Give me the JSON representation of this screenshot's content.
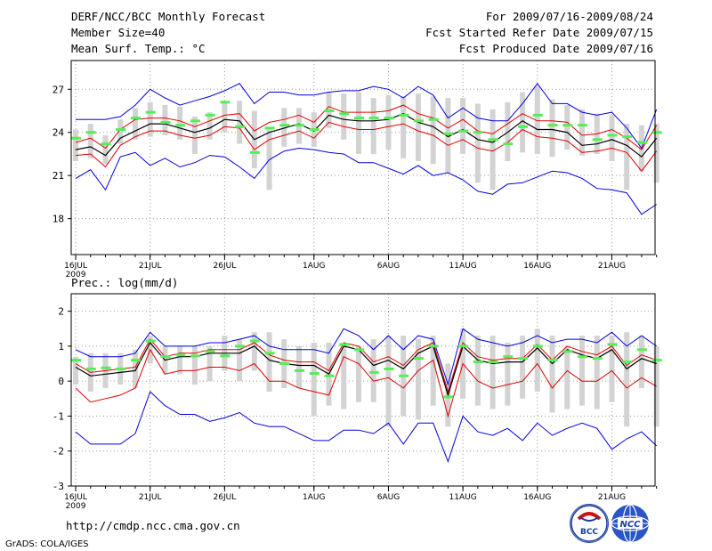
{
  "header": {
    "title": "DERF/NCC/BCC Monthly Forecast",
    "member_size": "Member Size=40",
    "variable": "Mean Surf. Temp.: °C",
    "period": "For 2009/07/16-2009/08/24",
    "refer_date": "Fcst Started Refer Date 2009/07/15",
    "produced_date": "Fcst Produced Date 2009/07/16"
  },
  "footer": {
    "url": "http://cmdp.ncc.cma.gov.cn",
    "grads": "GrADS: COLA/IGES",
    "logo_bcc": "BCC",
    "logo_ncc": "NCC"
  },
  "colors": {
    "box": "#d3d3d3",
    "median": "#55ee55",
    "mean": "#000000",
    "band_inner": "#e00000",
    "band_outer": "#0000dd",
    "grid": "#999999"
  },
  "chart_data": [
    {
      "type": "box-plume",
      "title": "Mean Surf. Temp.: °C",
      "xlabel": "",
      "ylabel": "°C",
      "x_start": "2009-07-16",
      "n_days": 40,
      "xlim": [
        -0.3,
        38.9
      ],
      "ylim": [
        15.5,
        29
      ],
      "yticks": [
        18,
        21,
        24,
        27
      ],
      "ytick_labels": [
        "18",
        "21",
        "24",
        "27"
      ],
      "xticks": [
        0,
        5,
        10,
        16,
        21,
        26,
        31,
        36
      ],
      "xtick_labels": [
        "16JUL",
        "21JUL",
        "26JUL",
        "1AUG",
        "6AUG",
        "11AUG",
        "16AUG",
        "21AUG"
      ],
      "year_label": "2009",
      "grid": true,
      "series": [
        {
          "name": "box_low",
          "values": [
            22.0,
            22.2,
            21.8,
            23.2,
            23.5,
            23.7,
            23.8,
            23.5,
            22.5,
            23.5,
            24.0,
            23.2,
            21.5,
            20.0,
            23.0,
            23.2,
            23.0,
            24.3,
            23.5,
            22.5,
            22.5,
            22.8,
            22.2,
            22.0,
            21.8,
            21.2,
            22.5,
            20.5,
            20.0,
            22.0,
            22.6,
            22.5,
            22.3,
            22.8,
            22.4,
            22.5,
            22.0,
            20.0,
            21.3,
            20.5
          ]
        },
        {
          "name": "box_high",
          "values": [
            24.2,
            24.6,
            23.8,
            24.9,
            25.7,
            26.1,
            25.9,
            25.8,
            25.1,
            25.4,
            26.2,
            26.2,
            25.5,
            24.2,
            25.7,
            25.7,
            25.4,
            26.8,
            26.7,
            26.8,
            26.4,
            26.6,
            26.5,
            26.7,
            26.5,
            26.4,
            26.4,
            26.0,
            25.6,
            26.1,
            26.8,
            27.2,
            26.3,
            25.9,
            25.6,
            25.3,
            25.2,
            24.6,
            24.5,
            24.6
          ]
        },
        {
          "name": "median",
          "values": [
            23.6,
            24.0,
            23.2,
            24.2,
            25.0,
            25.4,
            24.7,
            24.5,
            24.8,
            25.2,
            26.1,
            24.4,
            22.6,
            24.3,
            24.5,
            24.5,
            24.2,
            25.5,
            25.3,
            25.0,
            25.0,
            25.0,
            25.2,
            24.8,
            24.9,
            23.9,
            24.1,
            24.0,
            23.5,
            23.2,
            24.4,
            25.2,
            24.5,
            24.5,
            24.5,
            23.5,
            23.8,
            23.7,
            23.3,
            24.0
          ]
        },
        {
          "name": "mean",
          "values": [
            22.8,
            23.0,
            22.4,
            23.6,
            24.1,
            24.6,
            24.6,
            24.3,
            24.0,
            24.3,
            24.9,
            24.8,
            23.5,
            24.0,
            24.3,
            24.6,
            24.1,
            25.2,
            24.9,
            24.8,
            24.8,
            24.9,
            25.3,
            24.7,
            24.4,
            23.7,
            24.2,
            23.5,
            23.3,
            24.0,
            24.8,
            24.2,
            24.2,
            24.0,
            23.1,
            23.2,
            23.5,
            23.1,
            22.3,
            23.6
          ]
        },
        {
          "name": "inner_high",
          "values": [
            23.3,
            23.6,
            22.9,
            24.2,
            24.9,
            25.0,
            25.0,
            24.8,
            24.4,
            24.8,
            25.2,
            25.3,
            24.1,
            24.7,
            24.9,
            25.2,
            24.7,
            25.8,
            25.4,
            25.4,
            25.4,
            25.5,
            25.9,
            25.3,
            25.0,
            24.3,
            24.9,
            24.1,
            23.9,
            24.6,
            25.3,
            24.8,
            24.8,
            24.7,
            23.8,
            23.9,
            24.2,
            23.6,
            22.8,
            24.5
          ]
        },
        {
          "name": "inner_low",
          "values": [
            22.4,
            22.5,
            21.6,
            23.1,
            23.7,
            24.1,
            24.1,
            23.8,
            23.6,
            23.8,
            24.4,
            24.3,
            22.8,
            23.5,
            23.8,
            24.1,
            23.6,
            24.7,
            24.4,
            24.2,
            24.2,
            24.4,
            24.6,
            24.1,
            23.8,
            23.1,
            23.5,
            22.9,
            22.7,
            23.3,
            24.2,
            23.7,
            23.6,
            23.4,
            22.6,
            22.7,
            22.9,
            22.6,
            21.3,
            22.7
          ]
        },
        {
          "name": "outer_high",
          "values": [
            24.9,
            24.9,
            24.9,
            25.1,
            25.9,
            27.0,
            26.4,
            25.9,
            26.2,
            26.5,
            26.9,
            27.4,
            26.0,
            26.8,
            26.8,
            26.6,
            26.6,
            26.8,
            26.9,
            26.9,
            27.2,
            27.0,
            26.4,
            27.2,
            26.6,
            25.0,
            25.7,
            25.0,
            24.8,
            24.8,
            26.0,
            27.4,
            26.0,
            26.0,
            25.4,
            25.2,
            25.4,
            24.3,
            22.9,
            25.6
          ]
        },
        {
          "name": "outer_low",
          "values": [
            20.8,
            21.4,
            20.0,
            22.3,
            22.6,
            21.7,
            22.2,
            21.6,
            21.9,
            22.4,
            22.3,
            21.6,
            20.8,
            22.1,
            22.7,
            22.9,
            22.8,
            22.6,
            22.5,
            21.9,
            21.9,
            21.5,
            21.1,
            21.7,
            21.0,
            21.2,
            20.7,
            19.9,
            19.7,
            20.4,
            20.5,
            20.9,
            21.3,
            21.2,
            20.8,
            20.1,
            20.0,
            19.8,
            18.3,
            19.0
          ]
        }
      ]
    },
    {
      "type": "box-plume",
      "title": "Prec.: log(mm/d)",
      "xlabel": "",
      "ylabel": "log(mm/d)",
      "x_start": "2009-07-16",
      "n_days": 40,
      "xlim": [
        -0.3,
        38.9
      ],
      "ylim": [
        -3,
        2.5
      ],
      "yticks": [
        -3,
        -2,
        -1,
        0,
        1,
        2
      ],
      "ytick_labels": [
        "-3",
        "-2",
        "-1",
        "0",
        "1",
        "2"
      ],
      "xticks": [
        0,
        5,
        10,
        16,
        21,
        26,
        31,
        36
      ],
      "xtick_labels": [
        "16JUL",
        "21JUL",
        "26JUL",
        "1AUG",
        "6AUG",
        "11AUG",
        "16AUG",
        "21AUG"
      ],
      "year_label": "2009",
      "grid": true,
      "series": [
        {
          "name": "box_low",
          "values": [
            -0.1,
            -0.3,
            -0.2,
            -0.1,
            -0.2,
            0.5,
            0.2,
            0.2,
            -0.1,
            0.0,
            0.3,
            0.0,
            0.3,
            -0.3,
            -0.2,
            -0.2,
            -1.0,
            -0.7,
            -0.8,
            -0.6,
            -0.6,
            -1.3,
            -1.0,
            -1.1,
            -0.7,
            -1.3,
            -0.5,
            -0.7,
            -0.8,
            -0.7,
            -0.5,
            -0.3,
            -0.9,
            -0.8,
            -0.7,
            -0.8,
            -0.6,
            -1.3,
            -0.2,
            -1.3
          ]
        },
        {
          "name": "box_high",
          "values": [
            0.7,
            0.8,
            0.8,
            0.8,
            0.9,
            1.3,
            1.0,
            1.0,
            1.0,
            1.0,
            1.3,
            1.2,
            1.4,
            1.4,
            1.2,
            1.0,
            1.1,
            1.1,
            1.0,
            1.0,
            1.2,
            1.3,
            1.3,
            1.2,
            1.3,
            0.5,
            1.5,
            1.3,
            1.3,
            1.1,
            1.3,
            1.5,
            1.3,
            1.0,
            1.3,
            1.3,
            1.3,
            1.4,
            1.3,
            1.0
          ]
        },
        {
          "name": "median",
          "values": [
            0.6,
            0.35,
            0.38,
            0.35,
            0.6,
            1.15,
            0.7,
            0.75,
            0.72,
            0.85,
            0.72,
            1.0,
            1.15,
            0.8,
            0.5,
            0.3,
            0.22,
            0.15,
            1.05,
            0.9,
            0.25,
            0.35,
            0.15,
            0.65,
            1.0,
            -0.45,
            1.0,
            0.55,
            0.55,
            0.7,
            0.65,
            1.0,
            0.6,
            0.85,
            0.7,
            0.65,
            1.05,
            0.55,
            0.9,
            0.6
          ]
        },
        {
          "name": "mean",
          "values": [
            0.4,
            0.15,
            0.2,
            0.25,
            0.3,
            1.1,
            0.6,
            0.7,
            0.7,
            0.8,
            0.8,
            0.8,
            1.0,
            0.6,
            0.5,
            0.45,
            0.45,
            0.2,
            1.0,
            0.9,
            0.45,
            0.6,
            0.35,
            0.8,
            1.0,
            -0.4,
            1.0,
            0.6,
            0.5,
            0.55,
            0.55,
            0.95,
            0.5,
            0.9,
            0.75,
            0.65,
            0.9,
            0.35,
            0.65,
            0.5
          ]
        },
        {
          "name": "inner_high",
          "values": [
            0.5,
            0.25,
            0.3,
            0.35,
            0.4,
            1.2,
            0.7,
            0.8,
            0.8,
            0.9,
            0.9,
            0.9,
            1.1,
            0.75,
            0.6,
            0.55,
            0.55,
            0.3,
            1.1,
            1.0,
            0.55,
            0.7,
            0.45,
            0.9,
            1.1,
            -0.3,
            1.1,
            0.7,
            0.6,
            0.65,
            0.65,
            1.05,
            0.6,
            1.0,
            0.85,
            0.75,
            1.0,
            0.45,
            0.75,
            0.6
          ]
        },
        {
          "name": "inner_low",
          "values": [
            -0.2,
            -0.6,
            -0.5,
            -0.4,
            -0.2,
            0.9,
            0.2,
            0.3,
            0.3,
            0.4,
            0.4,
            0.3,
            0.5,
            0.0,
            0.0,
            -0.2,
            -0.3,
            -0.4,
            0.7,
            0.5,
            0.0,
            0.1,
            -0.2,
            0.3,
            0.6,
            -1.0,
            0.5,
            0.0,
            -0.2,
            -0.1,
            0.0,
            0.5,
            -0.2,
            0.3,
            0.0,
            0.0,
            0.3,
            -0.2,
            0.1,
            -0.15
          ]
        },
        {
          "name": "outer_high",
          "values": [
            0.9,
            0.7,
            0.7,
            0.7,
            0.8,
            1.4,
            1.0,
            1.0,
            1.0,
            1.1,
            1.1,
            1.2,
            1.3,
            1.0,
            0.9,
            0.9,
            0.9,
            0.8,
            1.5,
            1.3,
            0.9,
            1.3,
            0.9,
            1.3,
            1.2,
            -0.1,
            1.5,
            1.2,
            1.1,
            1.0,
            1.1,
            1.3,
            1.1,
            1.2,
            1.2,
            1.1,
            1.4,
            1.0,
            1.3,
            1.0
          ]
        },
        {
          "name": "outer_low",
          "values": [
            -1.45,
            -1.8,
            -1.8,
            -1.8,
            -1.5,
            -0.3,
            -0.7,
            -0.95,
            -0.95,
            -1.15,
            -1.05,
            -0.9,
            -1.2,
            -1.3,
            -1.3,
            -1.5,
            -1.7,
            -1.7,
            -1.4,
            -1.4,
            -1.5,
            -1.2,
            -1.8,
            -1.2,
            -1.2,
            -2.3,
            -1.0,
            -1.45,
            -1.55,
            -1.35,
            -1.7,
            -1.2,
            -1.55,
            -1.35,
            -1.2,
            -1.35,
            -1.95,
            -1.65,
            -1.45,
            -1.85
          ]
        }
      ]
    }
  ]
}
